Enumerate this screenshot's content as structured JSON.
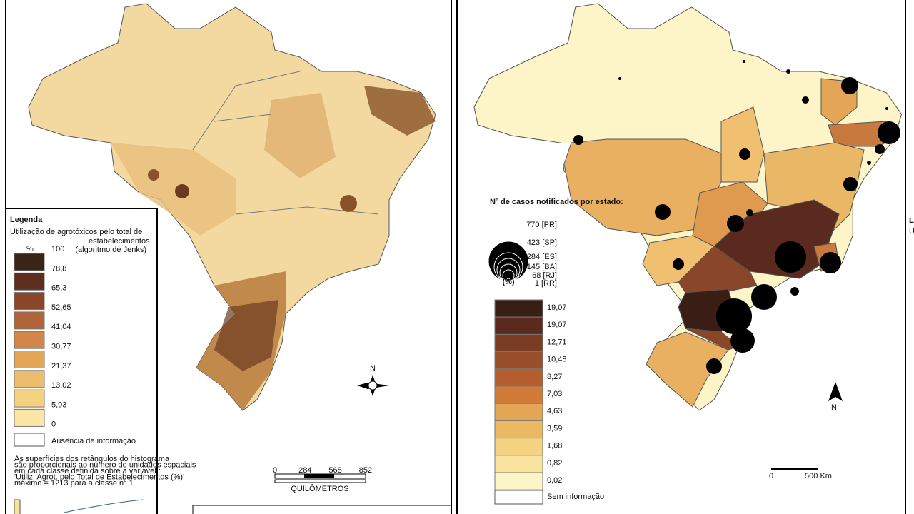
{
  "left_map": {
    "legend": {
      "title": "Legenda",
      "subtitle_1": "Utilização de agrotóxicos pelo total de",
      "subtitle_2": "estabelecimentos",
      "method": "(algoritmo de Jenks)",
      "unit": "%",
      "classes": [
        "100",
        "78,8",
        "65,3",
        "52,65",
        "41,04",
        "30,77",
        "21,37",
        "13,02",
        "5,93",
        "0"
      ],
      "no_info": "Ausência de informação",
      "note": [
        "As superfícies dos retângulos do histograma",
        "são proporcionais ao número de unidades espaciais",
        "em cada classe definida sobre a variável :",
        "'Utiliz. Agrot. pelo Total de Estabelecimentos (%)'",
        "máximo = 1213 para a classe n° 1"
      ]
    },
    "north": "N",
    "scale": {
      "ticks": [
        "0",
        "284",
        "568",
        "852"
      ],
      "unit": "QUILÔMETROS"
    }
  },
  "right_map": {
    "bubble_legend": {
      "title": "Nº de casos notificados por estado:",
      "items": [
        "770 [PR]",
        "423 [SP]",
        "284 [ES]",
        "145 [BA]",
        "68 [RJ]",
        "1 [RR]"
      ]
    },
    "pct_legend": {
      "unit": "(%)",
      "classes": [
        "19,07",
        "19,07",
        "12,71",
        "10,48",
        "8,27",
        "7,03",
        "4,63",
        "3,59",
        "1,68",
        "0,82",
        "0,02"
      ],
      "no_info": "Sem informação"
    },
    "north": "N",
    "scale": {
      "ticks": [
        "0",
        "500 Km"
      ]
    }
  },
  "right_edge": {
    "title": "L",
    "subtitle": "U"
  }
}
